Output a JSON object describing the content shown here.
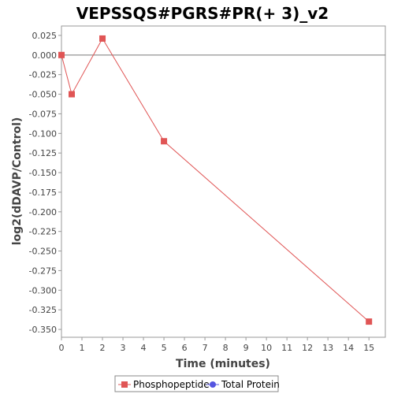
{
  "chart_data": {
    "type": "line",
    "title": "VEPSSQS#PGRS#PR(+ 3)_v2",
    "xlabel": "Time (minutes)",
    "ylabel": "log2(dDAVP/Control)",
    "xlim": [
      0,
      15.8
    ],
    "ylim": [
      -0.36,
      0.037
    ],
    "x_ticks": [
      0,
      1,
      2,
      3,
      4,
      5,
      6,
      7,
      8,
      9,
      10,
      11,
      12,
      13,
      14,
      15
    ],
    "y_ticks": [
      0.025,
      0.0,
      -0.025,
      -0.05,
      -0.075,
      -0.1,
      -0.125,
      -0.15,
      -0.175,
      -0.2,
      -0.225,
      -0.25,
      -0.275,
      -0.3,
      -0.325,
      -0.35
    ],
    "y_tick_labels": [
      "0.025",
      "0.000",
      "-0.025",
      "-0.050",
      "-0.075",
      "-0.100",
      "-0.125",
      "-0.150",
      "-0.175",
      "-0.200",
      "-0.225",
      "-0.250",
      "-0.275",
      "-0.300",
      "-0.325",
      "-0.350"
    ],
    "zero_line": true,
    "grid": false,
    "legend_position": "bottom-center",
    "series": [
      {
        "name": "Phosphopeptide",
        "color": "#e05555",
        "marker": "square",
        "x": [
          0,
          0.5,
          2,
          5,
          15
        ],
        "y": [
          0.0,
          -0.05,
          0.021,
          -0.11,
          -0.34
        ]
      },
      {
        "name": "Total Protein",
        "color": "#5555e0",
        "marker": "circle",
        "x": [],
        "y": []
      }
    ]
  }
}
